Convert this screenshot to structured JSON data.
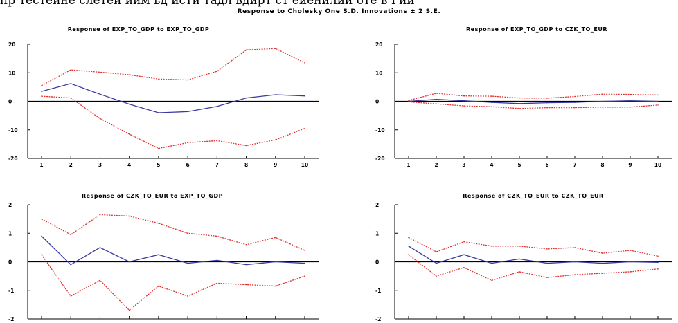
{
  "header": {
    "top_cut_text": "пр тестеине слетеи иим ьд исти тадл вдирт ст еиенилии оте в Гии",
    "main_title": "Response to Cholesky One S.D. Innovations ± 2 S.E."
  },
  "colors": {
    "response_line": "#3a3aa0",
    "band_line": "#e03030",
    "axis": "#000000"
  },
  "chart_data": [
    {
      "type": "line",
      "title": "Response of EXP_TO_GDP to EXP_TO_GDP",
      "x": [
        1,
        2,
        3,
        4,
        5,
        6,
        7,
        8,
        9,
        10
      ],
      "ylim": [
        -20,
        20
      ],
      "yticks": [
        20,
        10,
        0,
        -10,
        -20
      ],
      "series": [
        {
          "role": "response",
          "values": [
            3.5,
            6.2,
            2.5,
            -1.0,
            -4.0,
            -3.6,
            -1.8,
            1.2,
            2.3,
            1.9
          ]
        },
        {
          "role": "upper",
          "values": [
            5.5,
            11.0,
            10.2,
            9.3,
            7.8,
            7.5,
            10.5,
            18.0,
            18.5,
            13.5
          ]
        },
        {
          "role": "lower",
          "values": [
            1.8,
            1.2,
            -6.0,
            -11.5,
            -16.5,
            -14.5,
            -13.8,
            -15.5,
            -13.5,
            -9.5
          ]
        }
      ]
    },
    {
      "type": "line",
      "title": "Response of EXP_TO_GDP to CZK_TO_EUR",
      "x": [
        1,
        2,
        3,
        4,
        5,
        6,
        7,
        8,
        9,
        10
      ],
      "ylim": [
        -20,
        20
      ],
      "yticks": [
        20,
        10,
        0,
        -10,
        -20
      ],
      "series": [
        {
          "role": "response",
          "values": [
            0.0,
            0.7,
            0.2,
            -0.4,
            -0.8,
            -0.5,
            -0.4,
            0.0,
            0.2,
            0.0
          ]
        },
        {
          "role": "upper",
          "values": [
            0.3,
            2.8,
            1.9,
            1.8,
            1.2,
            1.1,
            1.7,
            2.5,
            2.4,
            2.2
          ]
        },
        {
          "role": "lower",
          "values": [
            -0.2,
            -0.9,
            -1.6,
            -1.9,
            -2.5,
            -2.2,
            -2.2,
            -2.0,
            -2.0,
            -1.3
          ]
        }
      ]
    },
    {
      "type": "line",
      "title": "Response of CZK_TO_EUR to EXP_TO_GDP",
      "x": [
        1,
        2,
        3,
        4,
        5,
        6,
        7,
        8,
        9,
        10
      ],
      "ylim": [
        -2,
        2
      ],
      "yticks": [
        2,
        1,
        0,
        -1,
        -2
      ],
      "series": [
        {
          "role": "response",
          "values": [
            0.9,
            -0.1,
            0.5,
            0.0,
            0.25,
            -0.05,
            0.05,
            -0.1,
            0.0,
            -0.05
          ]
        },
        {
          "role": "upper",
          "values": [
            1.5,
            0.95,
            1.65,
            1.6,
            1.35,
            1.0,
            0.9,
            0.6,
            0.85,
            0.4
          ]
        },
        {
          "role": "lower",
          "values": [
            0.25,
            -1.2,
            -0.65,
            -1.7,
            -0.85,
            -1.2,
            -0.75,
            -0.8,
            -0.85,
            -0.5
          ]
        }
      ]
    },
    {
      "type": "line",
      "title": "Response of CZK_TO_EUR to CZK_TO_EUR",
      "x": [
        1,
        2,
        3,
        4,
        5,
        6,
        7,
        8,
        9,
        10
      ],
      "ylim": [
        -2,
        2
      ],
      "yticks": [
        2,
        1,
        0,
        -1,
        -2
      ],
      "series": [
        {
          "role": "response",
          "values": [
            0.55,
            -0.05,
            0.25,
            -0.05,
            0.1,
            -0.05,
            0.0,
            -0.05,
            0.0,
            -0.02
          ]
        },
        {
          "role": "upper",
          "values": [
            0.85,
            0.35,
            0.7,
            0.55,
            0.55,
            0.45,
            0.5,
            0.3,
            0.4,
            0.2
          ]
        },
        {
          "role": "lower",
          "values": [
            0.25,
            -0.5,
            -0.2,
            -0.65,
            -0.35,
            -0.55,
            -0.45,
            -0.4,
            -0.35,
            -0.25
          ]
        }
      ]
    }
  ]
}
